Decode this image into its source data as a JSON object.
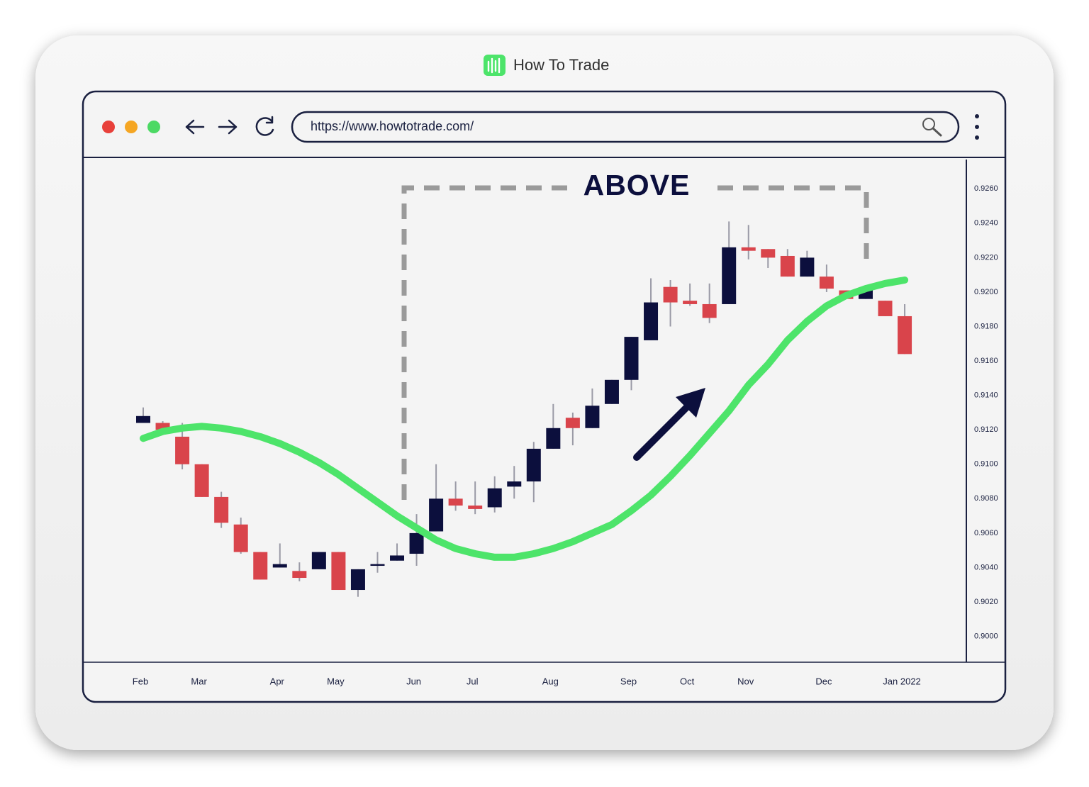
{
  "header": {
    "brand": "How To Trade"
  },
  "browser": {
    "url": "https://www.howtotrade.com/"
  },
  "chart_data": {
    "type": "candlestick",
    "annotation": "ABOVE",
    "categories": [
      "Feb",
      null,
      null,
      "Mar",
      null,
      null,
      null,
      "Apr",
      null,
      null,
      "May",
      null,
      null,
      null,
      "Jun",
      null,
      null,
      "Jul",
      null,
      null,
      null,
      "Aug",
      null,
      null,
      null,
      "Sep",
      null,
      null,
      "Oct",
      null,
      null,
      "Nov",
      null,
      null,
      null,
      "Dec",
      null,
      null,
      null,
      "Jan 2022"
    ],
    "open": [
      0.9124,
      0.9124,
      0.9116,
      0.91,
      0.9081,
      0.9065,
      0.9049,
      0.904,
      0.9038,
      0.9039,
      0.9049,
      0.9027,
      0.9041,
      0.9044,
      0.9048,
      0.9061,
      0.908,
      0.9076,
      0.9075,
      0.9087,
      0.909,
      0.9109,
      0.9127,
      0.9121,
      0.9135,
      0.9149,
      0.9172,
      0.9203,
      0.9195,
      0.9193,
      0.9193,
      0.9226,
      0.9225,
      0.9221,
      0.9209,
      0.9209,
      0.9201,
      0.9196,
      0.9195,
      0.9186
    ],
    "high": [
      0.9133,
      0.9125,
      0.9124,
      0.91,
      0.9084,
      0.9069,
      0.9049,
      0.9054,
      0.9043,
      0.9049,
      0.9049,
      0.9039,
      0.9049,
      0.9054,
      0.9071,
      0.91,
      0.909,
      0.909,
      0.9093,
      0.9099,
      0.9113,
      0.9135,
      0.913,
      0.9144,
      0.9149,
      0.9174,
      0.9208,
      0.9207,
      0.9205,
      0.9205,
      0.9241,
      0.9239,
      0.9225,
      0.9225,
      0.9224,
      0.9216,
      0.9201,
      0.9204,
      0.9195,
      0.9193
    ],
    "low": [
      0.9124,
      0.912,
      0.9097,
      0.9081,
      0.9063,
      0.9048,
      0.9033,
      0.904,
      0.9032,
      0.9039,
      0.9027,
      0.9023,
      0.9037,
      0.9044,
      0.9041,
      0.9061,
      0.9073,
      0.9071,
      0.9072,
      0.908,
      0.9078,
      0.9109,
      0.9111,
      0.9121,
      0.9135,
      0.9143,
      0.9172,
      0.918,
      0.9192,
      0.9182,
      0.9193,
      0.9219,
      0.9214,
      0.9209,
      0.9209,
      0.92,
      0.9196,
      0.9196,
      0.9186,
      0.9164
    ],
    "close": [
      0.9128,
      0.912,
      0.91,
      0.9081,
      0.9066,
      0.9049,
      0.9033,
      0.9042,
      0.9034,
      0.9049,
      0.9027,
      0.9039,
      0.9042,
      0.9047,
      0.906,
      0.908,
      0.9076,
      0.9074,
      0.9086,
      0.909,
      0.9109,
      0.9121,
      0.9121,
      0.9134,
      0.9149,
      0.9174,
      0.9194,
      0.9194,
      0.9193,
      0.9185,
      0.9226,
      0.9224,
      0.922,
      0.9209,
      0.922,
      0.9202,
      0.9196,
      0.9202,
      0.9186,
      0.9164
    ],
    "up_color": "#0c0f3d",
    "down_color": "#d9444b",
    "moving_average": {
      "color": "#4de46a",
      "values": [
        0.9115,
        0.9119,
        0.9121,
        0.9122,
        0.9121,
        0.9119,
        0.9116,
        0.9112,
        0.9107,
        0.9101,
        0.9094,
        0.9086,
        0.9078,
        0.907,
        0.9063,
        0.9056,
        0.9051,
        0.9048,
        0.9046,
        0.9046,
        0.9048,
        0.9051,
        0.9055,
        0.906,
        0.9065,
        0.9073,
        0.9082,
        0.9093,
        0.9105,
        0.9118,
        0.9131,
        0.9146,
        0.9158,
        0.9172,
        0.9183,
        0.9192,
        0.9198,
        0.9202,
        0.9205,
        0.9207
      ]
    },
    "ylim": [
      0.8985,
      0.9277
    ],
    "yticks": [
      {
        "value": 0.9,
        "label": "0.9000"
      },
      {
        "value": 0.902,
        "label": "0.9020"
      },
      {
        "value": 0.904,
        "label": "0.9040"
      },
      {
        "value": 0.906,
        "label": "0.9060"
      },
      {
        "value": 0.908,
        "label": "0.9080"
      },
      {
        "value": 0.91,
        "label": "0.9100"
      },
      {
        "value": 0.912,
        "label": "0.9120"
      },
      {
        "value": 0.914,
        "label": "0.9140"
      },
      {
        "value": 0.916,
        "label": "0.9160"
      },
      {
        "value": 0.918,
        "label": "0.9180"
      },
      {
        "value": 0.92,
        "label": "0.9200"
      },
      {
        "value": 0.922,
        "label": "0.9220"
      },
      {
        "value": 0.924,
        "label": "0.9240"
      },
      {
        "value": 0.926,
        "label": "0.9260"
      }
    ]
  }
}
